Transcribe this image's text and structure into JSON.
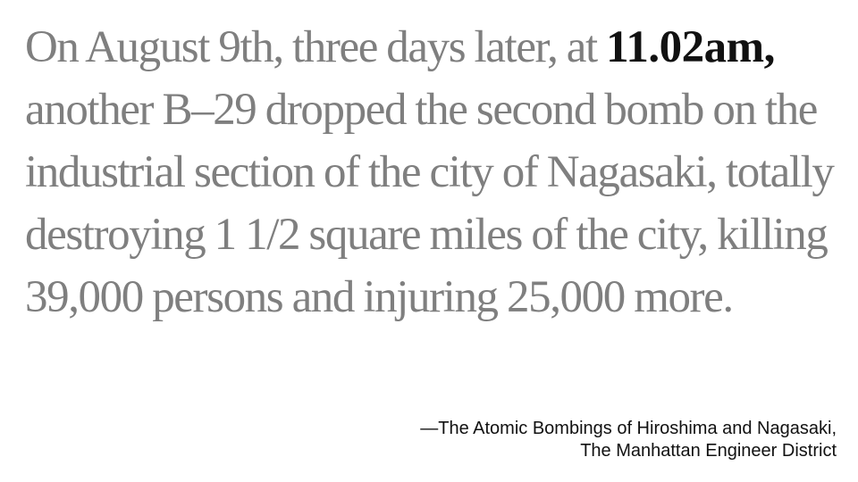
{
  "quote": {
    "before": "On August 9th, three days later, at ",
    "emphasis": "11.02am,",
    "after": " another B–29 dropped the second bomb on the industrial section of the city of Nagasaki, totally destroying 1 1/2 square miles of the city, killing 39,000 persons and injuring 25,000 more."
  },
  "attribution": {
    "line1": "—The Atomic Bombings of Hiroshima and Nagasaki,",
    "line2": "The Manhattan Engineer District"
  },
  "colors": {
    "body_text": "#7f7f7f",
    "emphasis_text": "#111111",
    "background": "#ffffff"
  }
}
